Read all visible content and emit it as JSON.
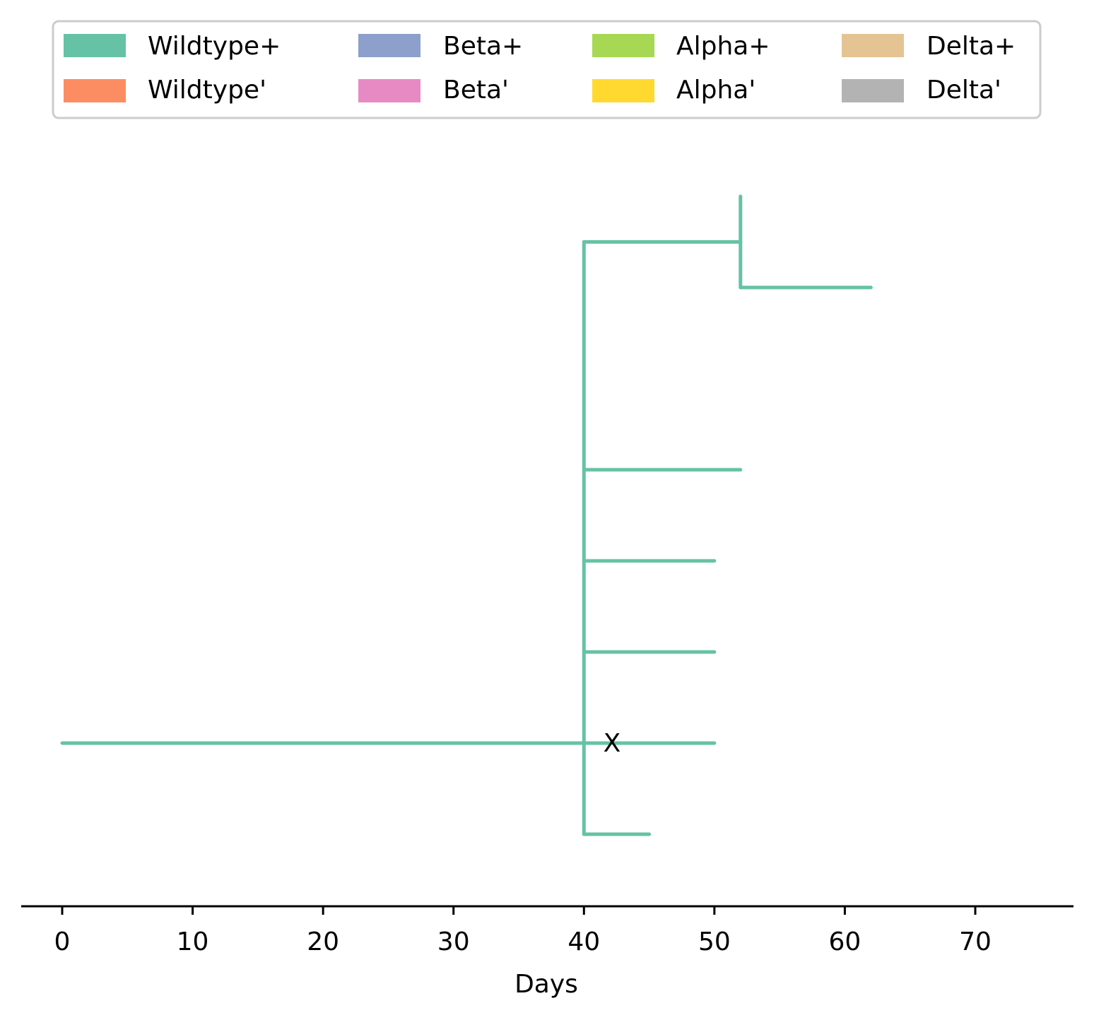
{
  "chart_data": {
    "type": "line",
    "title": "",
    "xlabel": "Days",
    "ylabel": "",
    "xlim": [
      -3.1,
      77.5
    ],
    "xticks": [
      0,
      10,
      20,
      30,
      40,
      50,
      60,
      70
    ],
    "grid": false,
    "legend": {
      "placement": "top-center",
      "columns": 4,
      "entries": [
        {
          "label": "Wildtype+",
          "color": "#66c2a5"
        },
        {
          "label": "Wildtype'",
          "color": "#fc8d62"
        },
        {
          "label": "Beta+",
          "color": "#8da0cb"
        },
        {
          "label": "Beta'",
          "color": "#e78ac3"
        },
        {
          "label": "Alpha+",
          "color": "#a6d854"
        },
        {
          "label": "Alpha'",
          "color": "#ffd92f"
        },
        {
          "label": "Delta+",
          "color": "#e5c494"
        },
        {
          "label": "Delta'",
          "color": "#b3b3b3"
        }
      ]
    },
    "lineage_color": "#66c2a5",
    "branches": [
      {
        "x": [
          0,
          40
        ],
        "y": 2
      },
      {
        "x": [
          40,
          50
        ],
        "y": 2
      },
      {
        "x": [
          40,
          45
        ],
        "y": 1
      },
      {
        "x": [
          40,
          50
        ],
        "y": 3
      },
      {
        "x": [
          40,
          50
        ],
        "y": 4
      },
      {
        "x": [
          40,
          52
        ],
        "y": 5
      },
      {
        "x": [
          40,
          52
        ],
        "y": 7.5
      },
      {
        "x": [
          52,
          62
        ],
        "y": 7
      },
      {
        "x": 40,
        "y": [
          1,
          7.5
        ]
      },
      {
        "x": 52,
        "y": [
          7,
          8
        ]
      }
    ],
    "annotations": [
      {
        "text": "X",
        "x": 41.5,
        "y": 2
      }
    ]
  }
}
